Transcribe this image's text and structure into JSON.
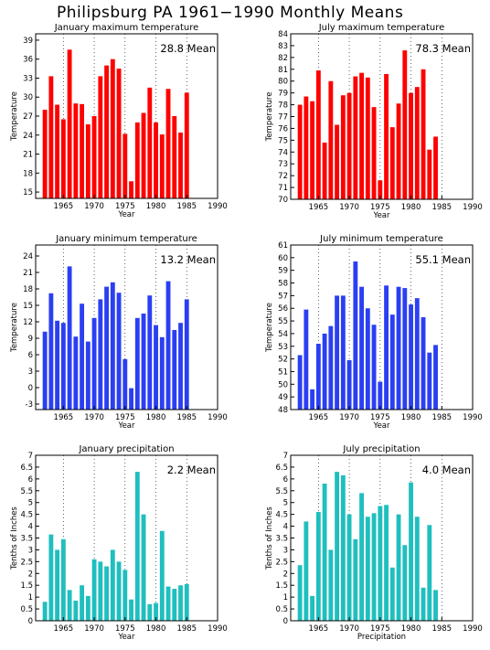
{
  "title": "Philipsburg PA   1961−1990 Monthly Means",
  "chart_data": [
    {
      "type": "bar",
      "title": "January maximum temperature",
      "mean_label": "28.8 Mean",
      "ylabel": "Temperature",
      "xlabel": "Year",
      "color": "#ff0000",
      "x": [
        1962,
        1963,
        1964,
        1965,
        1966,
        1967,
        1968,
        1969,
        1970,
        1971,
        1972,
        1973,
        1974,
        1975,
        1976,
        1977,
        1978,
        1979,
        1980,
        1981,
        1982,
        1983,
        1984,
        1985,
        1986
      ],
      "values": [
        28.0,
        33.3,
        28.8,
        26.5,
        37.5,
        29.0,
        28.9,
        25.7,
        27.0,
        33.3,
        35.0,
        36.0,
        34.5,
        24.2,
        16.7,
        26.0,
        27.5,
        31.5,
        26.0,
        24.1,
        31.3,
        27.0,
        24.4,
        30.7,
        null
      ],
      "xlim": [
        1960.5,
        1990
      ],
      "ylim": [
        14,
        40
      ],
      "yticks": [
        15,
        18,
        21,
        24,
        27,
        30,
        33,
        36,
        39
      ],
      "xticks": [
        1965,
        1970,
        1975,
        1980,
        1985,
        1990
      ]
    },
    {
      "type": "bar",
      "title": "July maximum temperature",
      "mean_label": "78.3 Mean",
      "ylabel": "Temperature",
      "xlabel": "Year",
      "color": "#ff0000",
      "x": [
        1962,
        1963,
        1964,
        1965,
        1966,
        1967,
        1968,
        1969,
        1970,
        1971,
        1972,
        1973,
        1974,
        1975,
        1976,
        1977,
        1978,
        1979,
        1980,
        1981,
        1982,
        1983,
        1984,
        1985
      ],
      "values": [
        78.0,
        78.7,
        78.3,
        80.9,
        74.8,
        80.0,
        76.3,
        78.8,
        79.0,
        80.4,
        80.7,
        80.3,
        77.8,
        71.6,
        80.6,
        76.1,
        78.1,
        82.6,
        79.0,
        79.5,
        81.0,
        74.2,
        75.3,
        null
      ],
      "xlim": [
        1960.5,
        1990
      ],
      "ylim": [
        70,
        84
      ],
      "yticks": [
        70,
        71,
        72,
        73,
        74,
        75,
        76,
        77,
        78,
        79,
        80,
        81,
        82,
        83,
        84
      ],
      "xticks": [
        1965,
        1970,
        1975,
        1980,
        1985,
        1990
      ]
    },
    {
      "type": "bar",
      "title": "January minimum temperature",
      "mean_label": "13.2 Mean",
      "ylabel": "Temperature",
      "xlabel": "Year",
      "color": "#2b3ff2",
      "x": [
        1962,
        1963,
        1964,
        1965,
        1966,
        1967,
        1968,
        1969,
        1970,
        1971,
        1972,
        1973,
        1974,
        1975,
        1976,
        1977,
        1978,
        1979,
        1980,
        1981,
        1982,
        1983,
        1984,
        1985,
        1986
      ],
      "values": [
        10.2,
        17.2,
        12.2,
        11.8,
        22.1,
        9.3,
        15.3,
        8.4,
        12.7,
        16.1,
        18.4,
        19.2,
        17.3,
        5.2,
        -0.1,
        12.7,
        13.5,
        16.8,
        11.4,
        9.2,
        19.4,
        10.5,
        11.8,
        16.1,
        null
      ],
      "xlim": [
        1960.5,
        1990
      ],
      "ylim": [
        -4,
        26
      ],
      "yticks": [
        -3,
        0,
        3,
        6,
        9,
        12,
        15,
        18,
        21,
        24
      ],
      "xticks": [
        1965,
        1970,
        1975,
        1980,
        1985,
        1990
      ]
    },
    {
      "type": "bar",
      "title": "July minimum temperature",
      "mean_label": "55.1 Mean",
      "ylabel": "Temperature",
      "xlabel": "Year",
      "color": "#2b3ff2",
      "x": [
        1962,
        1963,
        1964,
        1965,
        1966,
        1967,
        1968,
        1969,
        1970,
        1971,
        1972,
        1973,
        1974,
        1975,
        1976,
        1977,
        1978,
        1979,
        1980,
        1981,
        1982,
        1983,
        1984,
        1985
      ],
      "values": [
        52.3,
        55.9,
        49.6,
        53.2,
        54.0,
        54.6,
        57.0,
        57.0,
        51.9,
        59.7,
        57.7,
        56.0,
        54.7,
        50.2,
        57.8,
        55.5,
        57.7,
        57.6,
        56.3,
        56.8,
        55.3,
        52.5,
        53.1,
        null
      ],
      "xlim": [
        1960.5,
        1990
      ],
      "ylim": [
        48,
        61
      ],
      "yticks": [
        48,
        49,
        50,
        51,
        52,
        53,
        54,
        55,
        56,
        57,
        58,
        59,
        60,
        61
      ],
      "xticks": [
        1965,
        1970,
        1975,
        1980,
        1985,
        1990
      ]
    },
    {
      "type": "bar",
      "title": "January precipitation",
      "mean_label": "2.2 Mean",
      "ylabel": "Tenths of Inches",
      "xlabel": "Year",
      "color": "#1fbfbf",
      "x": [
        1962,
        1963,
        1964,
        1965,
        1966,
        1967,
        1968,
        1969,
        1970,
        1971,
        1972,
        1973,
        1974,
        1975,
        1976,
        1977,
        1978,
        1979,
        1980,
        1981,
        1982,
        1983,
        1984,
        1985,
        1986
      ],
      "values": [
        0.8,
        3.65,
        3.0,
        3.45,
        1.3,
        0.85,
        1.5,
        1.05,
        2.6,
        2.5,
        2.3,
        3.0,
        2.5,
        2.15,
        0.9,
        6.3,
        4.5,
        0.7,
        0.75,
        3.8,
        1.45,
        1.35,
        1.5,
        1.55,
        null
      ],
      "xlim": [
        1960.5,
        1990
      ],
      "ylim": [
        0,
        7
      ],
      "yticks": [
        0,
        0.5,
        1,
        1.5,
        2,
        2.5,
        3,
        3.5,
        4,
        4.5,
        5,
        5.5,
        6,
        6.5,
        7
      ],
      "xticks": [
        1965,
        1970,
        1975,
        1980,
        1985,
        1990
      ]
    },
    {
      "type": "bar",
      "title": "July precipitation",
      "mean_label": "4.0 Mean",
      "ylabel": "Tenths of Inches",
      "xlabel": "Precipitation",
      "color": "#1fbfbf",
      "x": [
        1962,
        1963,
        1964,
        1965,
        1966,
        1967,
        1968,
        1969,
        1970,
        1971,
        1972,
        1973,
        1974,
        1975,
        1976,
        1977,
        1978,
        1979,
        1980,
        1981,
        1982,
        1983,
        1984,
        1985
      ],
      "values": [
        2.35,
        4.2,
        1.05,
        4.6,
        5.8,
        3.0,
        6.3,
        6.15,
        4.5,
        3.45,
        5.4,
        4.4,
        4.55,
        4.85,
        4.9,
        2.25,
        4.5,
        3.2,
        5.85,
        4.4,
        1.4,
        4.05,
        1.3,
        null
      ],
      "xlim": [
        1960.5,
        1990
      ],
      "ylim": [
        0,
        7
      ],
      "yticks": [
        0,
        0.5,
        1,
        1.5,
        2,
        2.5,
        3,
        3.5,
        4,
        4.5,
        5,
        5.5,
        6,
        6.5,
        7
      ],
      "xticks": [
        1965,
        1970,
        1975,
        1980,
        1985,
        1990
      ]
    }
  ]
}
